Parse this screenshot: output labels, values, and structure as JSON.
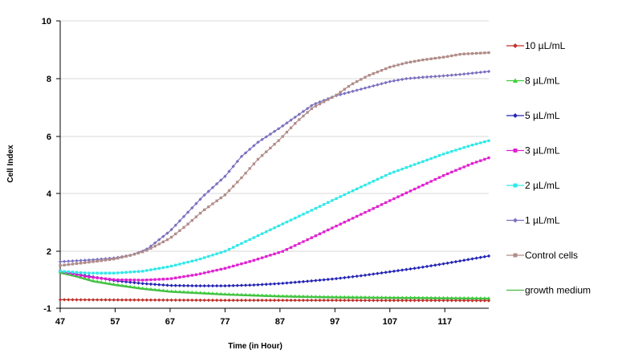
{
  "chart_data": {
    "type": "line",
    "title": "",
    "xlabel": "Time (in Hour)",
    "ylabel": "Cell Index",
    "xlim": [
      47,
      125
    ],
    "ylim": [
      -1,
      10
    ],
    "x_ticks": [
      "47",
      "57",
      "67",
      "77",
      "87",
      "97",
      "107",
      "117"
    ],
    "y_ticks": [
      "-1",
      "2",
      "4",
      "6",
      "8",
      "10"
    ],
    "grid": "horizontal",
    "legend_position": "right",
    "series": [
      {
        "name": "10 µL/mL",
        "color": "#c0302a",
        "marker": "diamond",
        "x": [
          47,
          57,
          67,
          77,
          87,
          97,
          107,
          117,
          125
        ],
        "y": [
          -0.55,
          -0.56,
          -0.57,
          -0.58,
          -0.58,
          -0.58,
          -0.59,
          -0.59,
          -0.6
        ]
      },
      {
        "name": "8 µL/mL",
        "color": "#3ccf3c",
        "marker": "triangle",
        "x": [
          47,
          50,
          53,
          57,
          62,
          67,
          77,
          87,
          97,
          107,
          117,
          125
        ],
        "y": [
          0.9,
          0.7,
          0.45,
          0.25,
          0.05,
          -0.1,
          -0.25,
          -0.35,
          -0.4,
          -0.43,
          -0.45,
          -0.47
        ]
      },
      {
        "name": "5 µL/mL",
        "color": "#2424b4",
        "marker": "diamond",
        "x": [
          47,
          52,
          57,
          62,
          67,
          72,
          77,
          82,
          87,
          92,
          97,
          102,
          107,
          112,
          117,
          122,
          125
        ],
        "y": [
          0.95,
          0.7,
          0.45,
          0.3,
          0.2,
          0.18,
          0.18,
          0.22,
          0.3,
          0.42,
          0.55,
          0.72,
          0.92,
          1.12,
          1.35,
          1.6,
          1.75
        ]
      },
      {
        "name": "3 µL/mL",
        "color": "#e020d0",
        "marker": "square",
        "x": [
          47,
          52,
          57,
          62,
          67,
          72,
          77,
          82,
          87,
          92,
          97,
          102,
          107,
          112,
          117,
          122,
          125
        ],
        "y": [
          0.95,
          0.65,
          0.5,
          0.48,
          0.55,
          0.78,
          1.1,
          1.5,
          1.95,
          2.4,
          2.85,
          3.3,
          3.75,
          4.2,
          4.65,
          5.05,
          5.25
        ]
      },
      {
        "name": "2 µL/mL",
        "color": "#30e8e8",
        "marker": "square",
        "x": [
          47,
          52,
          57,
          62,
          67,
          72,
          77,
          82,
          87,
          92,
          97,
          102,
          107,
          112,
          117,
          122,
          125
        ],
        "y": [
          0.95,
          0.85,
          0.85,
          0.95,
          1.2,
          1.55,
          2.0,
          2.45,
          2.9,
          3.35,
          3.8,
          4.25,
          4.7,
          5.05,
          5.4,
          5.7,
          5.85
        ]
      },
      {
        "name": "1 µL/mL",
        "color": "#7a70c0",
        "marker": "diamond",
        "x": [
          47,
          50,
          53,
          57,
          60,
          63,
          67,
          70,
          73,
          77,
          80,
          83,
          87,
          90,
          93,
          97,
          100,
          103,
          107,
          110,
          113,
          117,
          120,
          125
        ],
        "y": [
          1.45,
          1.5,
          1.55,
          1.65,
          1.8,
          2.1,
          2.7,
          3.3,
          3.9,
          4.6,
          5.3,
          5.8,
          6.3,
          6.7,
          7.1,
          7.4,
          7.55,
          7.7,
          7.9,
          8.0,
          8.05,
          8.1,
          8.15,
          8.25
        ]
      },
      {
        "name": "Control cells",
        "color": "#b08c88",
        "marker": "square",
        "x": [
          47,
          50,
          53,
          57,
          60,
          63,
          67,
          70,
          73,
          77,
          80,
          83,
          87,
          90,
          93,
          97,
          100,
          103,
          107,
          110,
          113,
          117,
          120,
          125
        ],
        "y": [
          1.25,
          1.35,
          1.45,
          1.6,
          1.8,
          2.05,
          2.45,
          2.9,
          3.4,
          3.95,
          4.55,
          5.2,
          5.9,
          6.5,
          7.0,
          7.4,
          7.8,
          8.1,
          8.4,
          8.55,
          8.65,
          8.75,
          8.85,
          8.9
        ]
      },
      {
        "name": "growth medium",
        "color": "#44bb44",
        "marker": "none",
        "x": [
          47,
          50,
          53,
          57,
          62,
          67,
          77,
          87,
          97,
          107,
          117,
          125
        ],
        "y": [
          0.85,
          0.65,
          0.4,
          0.2,
          0.0,
          -0.15,
          -0.3,
          -0.4,
          -0.45,
          -0.48,
          -0.5,
          -0.52
        ]
      }
    ]
  }
}
